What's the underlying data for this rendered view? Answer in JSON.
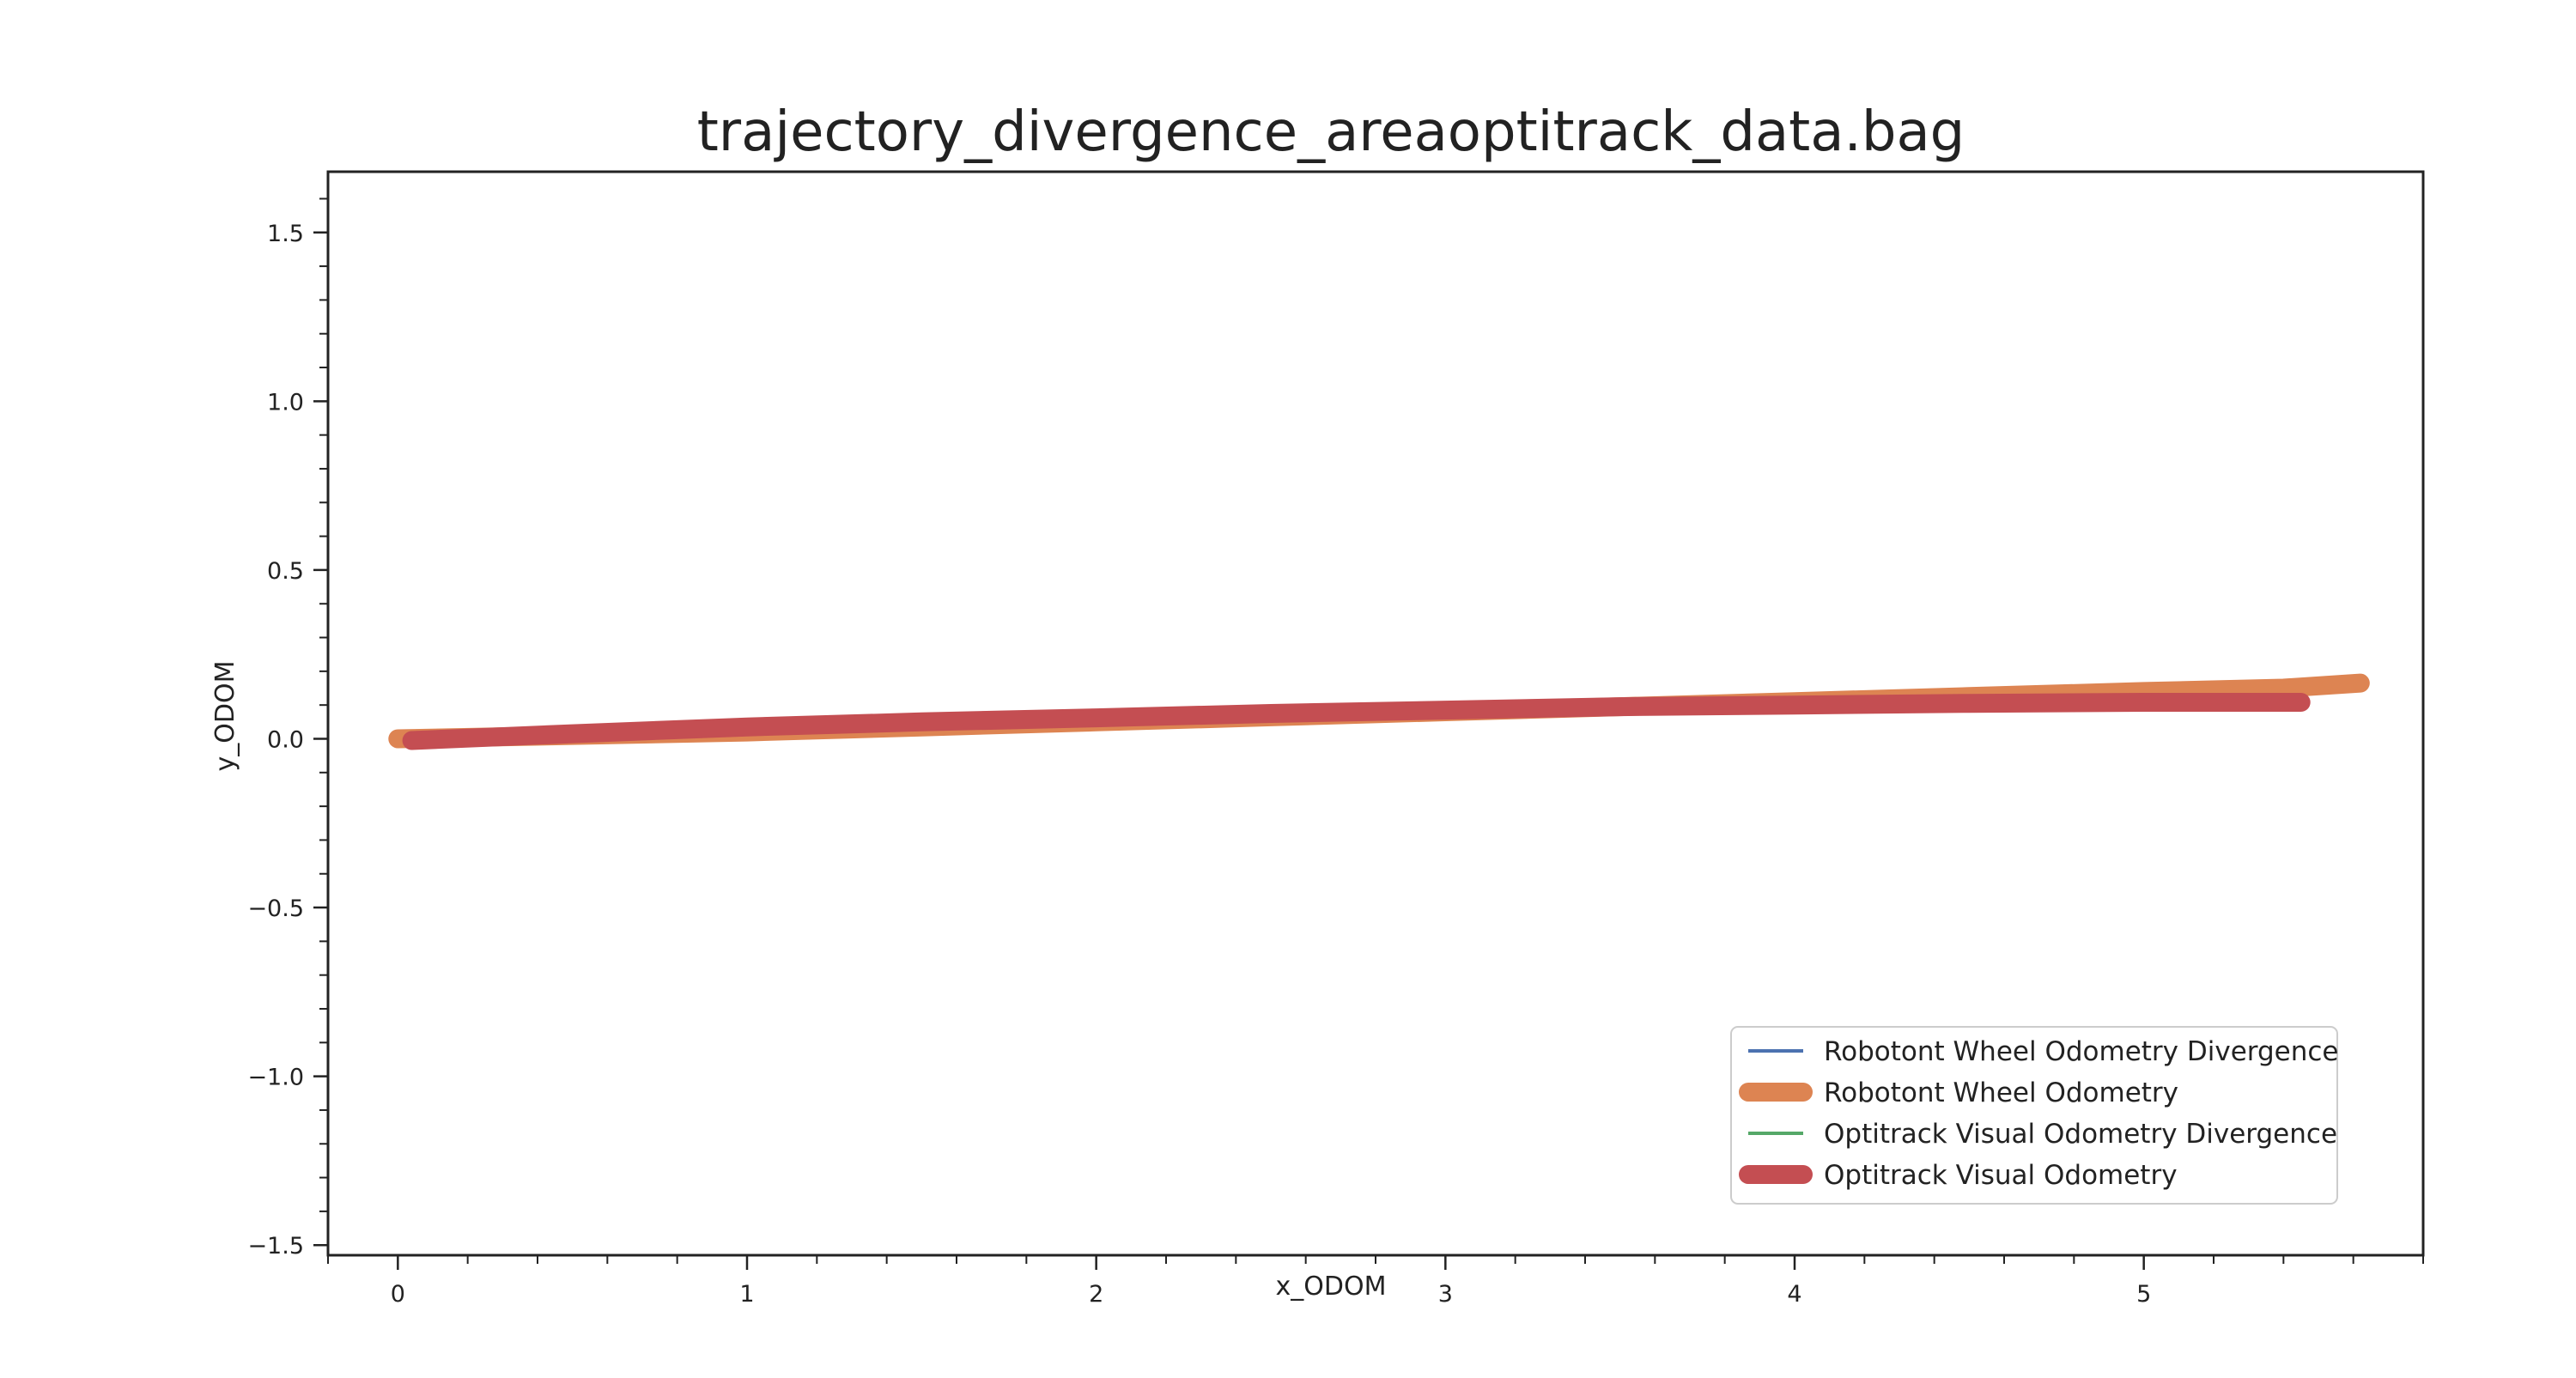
{
  "chart_data": {
    "type": "line",
    "title": "trajectory_divergence_areaoptitrack_data.bag",
    "xlabel": "x_ODOM",
    "ylabel": "y_ODOM",
    "xlim": [
      -0.2,
      5.8
    ],
    "ylim": [
      -1.53,
      1.68
    ],
    "x_ticks": [
      0,
      1,
      2,
      3,
      4,
      5
    ],
    "x_tick_labels": [
      "0",
      "1",
      "2",
      "3",
      "4",
      "5"
    ],
    "y_ticks": [
      -1.5,
      -1.0,
      -0.5,
      0.0,
      0.5,
      1.0,
      1.5
    ],
    "y_tick_labels": [
      "−1.5",
      "−1.0",
      "−0.5",
      "0.0",
      "0.5",
      "1.0",
      "1.5"
    ],
    "grid": false,
    "legend_position": "lower-right",
    "series": [
      {
        "name": "Robotont Wheel Odometry Divergence",
        "color": "#4c72b0",
        "style": "thin",
        "x": [],
        "y": []
      },
      {
        "name": "Robotont Wheel Odometry",
        "color": "#dd8452",
        "style": "thick",
        "x": [
          0.0,
          0.5,
          1.0,
          1.5,
          2.0,
          2.5,
          3.0,
          3.5,
          4.0,
          4.5,
          5.0,
          5.4,
          5.62
        ],
        "y": [
          0.0,
          0.01,
          0.02,
          0.035,
          0.05,
          0.065,
          0.08,
          0.095,
          0.11,
          0.125,
          0.14,
          0.15,
          0.165
        ]
      },
      {
        "name": "Optitrack Visual Odometry Divergence",
        "color": "#55a868",
        "style": "thin",
        "x": [],
        "y": []
      },
      {
        "name": "Optitrack Visual Odometry",
        "color": "#c44e52",
        "style": "thick",
        "x": [
          0.04,
          0.5,
          1.0,
          1.5,
          2.0,
          2.5,
          3.0,
          3.5,
          4.0,
          4.5,
          5.0,
          5.45
        ],
        "y": [
          -0.005,
          0.015,
          0.035,
          0.05,
          0.062,
          0.075,
          0.085,
          0.095,
          0.1,
          0.105,
          0.108,
          0.108
        ]
      }
    ]
  }
}
